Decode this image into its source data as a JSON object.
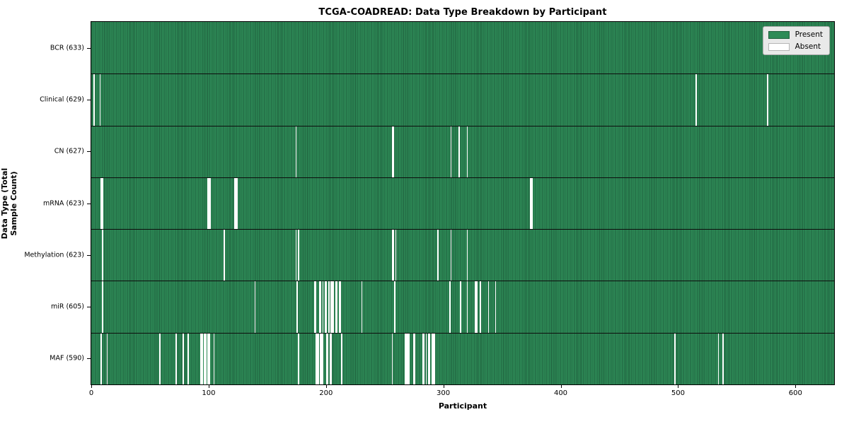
{
  "chart_data": {
    "type": "heatmap",
    "title": "TCGA-COADREAD: Data Type Breakdown by Participant",
    "xlabel": "Participant",
    "ylabel": "Data Type (Total Sample Count)",
    "participants_total": 633,
    "x_ticks": [
      0,
      100,
      200,
      300,
      400,
      500,
      600
    ],
    "grid": false,
    "present_color": "#2e8b57",
    "cell_edge_color": "#1f5f3d",
    "absent_color": "#ffffff",
    "legend": {
      "position": "upper right",
      "entries": [
        {
          "label": "Present",
          "color": "#2e8b57"
        },
        {
          "label": "Absent",
          "color": "#ffffff"
        }
      ]
    },
    "rows": [
      {
        "data_type": "BCR",
        "label": "BCR (633)",
        "present_count": 633,
        "absent_count": 0,
        "absent_runs": []
      },
      {
        "data_type": "Clinical",
        "label": "Clinical (629)",
        "present_count": 629,
        "absent_count": 4,
        "absent_runs": [
          [
            2,
            1
          ],
          [
            7,
            1
          ],
          [
            515,
            1
          ],
          [
            576,
            1
          ]
        ]
      },
      {
        "data_type": "CN",
        "label": "CN (627)",
        "present_count": 627,
        "absent_count": 6,
        "absent_runs": [
          [
            174,
            1
          ],
          [
            256,
            2
          ],
          [
            306,
            1
          ],
          [
            313,
            1
          ],
          [
            320,
            1
          ]
        ]
      },
      {
        "data_type": "mRNA",
        "label": "mRNA (623)",
        "present_count": 623,
        "absent_count": 10,
        "absent_runs": [
          [
            8,
            2
          ],
          [
            99,
            3
          ],
          [
            122,
            3
          ],
          [
            374,
            2
          ]
        ]
      },
      {
        "data_type": "Methylation",
        "label": "Methylation (623)",
        "present_count": 623,
        "absent_count": 10,
        "absent_runs": [
          [
            9,
            1
          ],
          [
            113,
            1
          ],
          [
            174,
            1
          ],
          [
            176,
            1
          ],
          [
            256,
            2
          ],
          [
            259,
            1
          ],
          [
            295,
            1
          ],
          [
            306,
            1
          ],
          [
            320,
            1
          ]
        ]
      },
      {
        "data_type": "miR",
        "label": "miR (605)",
        "present_count": 605,
        "absent_count": 28,
        "absent_runs": [
          [
            9,
            1
          ],
          [
            139,
            1
          ],
          [
            175,
            1
          ],
          [
            190,
            2
          ],
          [
            194,
            2
          ],
          [
            197,
            1
          ],
          [
            199,
            2
          ],
          [
            202,
            1
          ],
          [
            204,
            2
          ],
          [
            206,
            1
          ],
          [
            208,
            2
          ],
          [
            211,
            2
          ],
          [
            230,
            1
          ],
          [
            258,
            1
          ],
          [
            305,
            1
          ],
          [
            314,
            1
          ],
          [
            320,
            1
          ],
          [
            327,
            2
          ],
          [
            331,
            1
          ],
          [
            338,
            1
          ],
          [
            344,
            1
          ]
        ]
      },
      {
        "data_type": "MAF",
        "label": "MAF (590)",
        "present_count": 590,
        "absent_count": 43,
        "absent_runs": [
          [
            8,
            1
          ],
          [
            13,
            1
          ],
          [
            58,
            1
          ],
          [
            72,
            1
          ],
          [
            78,
            1
          ],
          [
            82,
            1
          ],
          [
            93,
            2
          ],
          [
            96,
            2
          ],
          [
            99,
            2
          ],
          [
            104,
            1
          ],
          [
            176,
            1
          ],
          [
            191,
            3
          ],
          [
            195,
            3
          ],
          [
            200,
            2
          ],
          [
            203,
            2
          ],
          [
            213,
            1
          ],
          [
            256,
            1
          ],
          [
            267,
            3
          ],
          [
            270,
            1
          ],
          [
            274,
            2
          ],
          [
            282,
            2
          ],
          [
            285,
            1
          ],
          [
            287,
            2
          ],
          [
            290,
            3
          ],
          [
            497,
            1
          ],
          [
            534,
            1
          ],
          [
            538,
            1
          ]
        ]
      }
    ]
  }
}
